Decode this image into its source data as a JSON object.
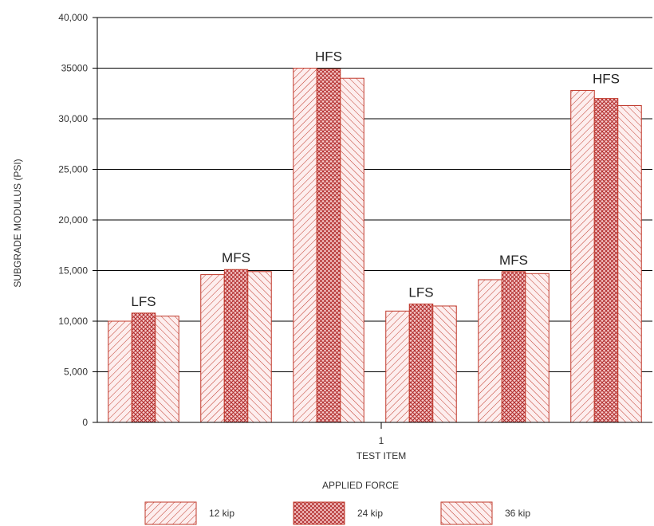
{
  "chart_data": {
    "type": "bar",
    "ylabel": "SUBGRADE MODULUS (PSI)",
    "xlabel": "TEST ITEM",
    "x_tick": "1",
    "ylim": [
      0,
      40000
    ],
    "y_ticks": [
      {
        "value": 0,
        "label": "0"
      },
      {
        "value": 5000,
        "label": "5,000"
      },
      {
        "value": 10000,
        "label": "10,000"
      },
      {
        "value": 15000,
        "label": "15,000"
      },
      {
        "value": 20000,
        "label": "20,000"
      },
      {
        "value": 25000,
        "label": "25,000"
      },
      {
        "value": 30000,
        "label": "30,000"
      },
      {
        "value": 35000,
        "label": "35000"
      },
      {
        "value": 40000,
        "label": "40,000"
      }
    ],
    "grid": true,
    "categories": [
      "LFS",
      "MFS",
      "HFS",
      "LFS",
      "MFS",
      "HFS"
    ],
    "series": [
      {
        "name": "12 kip",
        "values": [
          10000,
          14600,
          35000,
          11000,
          14100,
          32800
        ]
      },
      {
        "name": "24 kip",
        "values": [
          10800,
          15100,
          34900,
          11700,
          14900,
          32000
        ]
      },
      {
        "name": "36 kip",
        "values": [
          10500,
          14900,
          34000,
          11500,
          14700,
          31300
        ]
      }
    ],
    "legend": {
      "title": "APPLIED FORCE",
      "position": "bottom"
    },
    "colors": {
      "bar_stroke": "#c0392b",
      "bar_fill": "#fdeeee",
      "hatch": "#c0392b",
      "grid": "#000000"
    }
  }
}
